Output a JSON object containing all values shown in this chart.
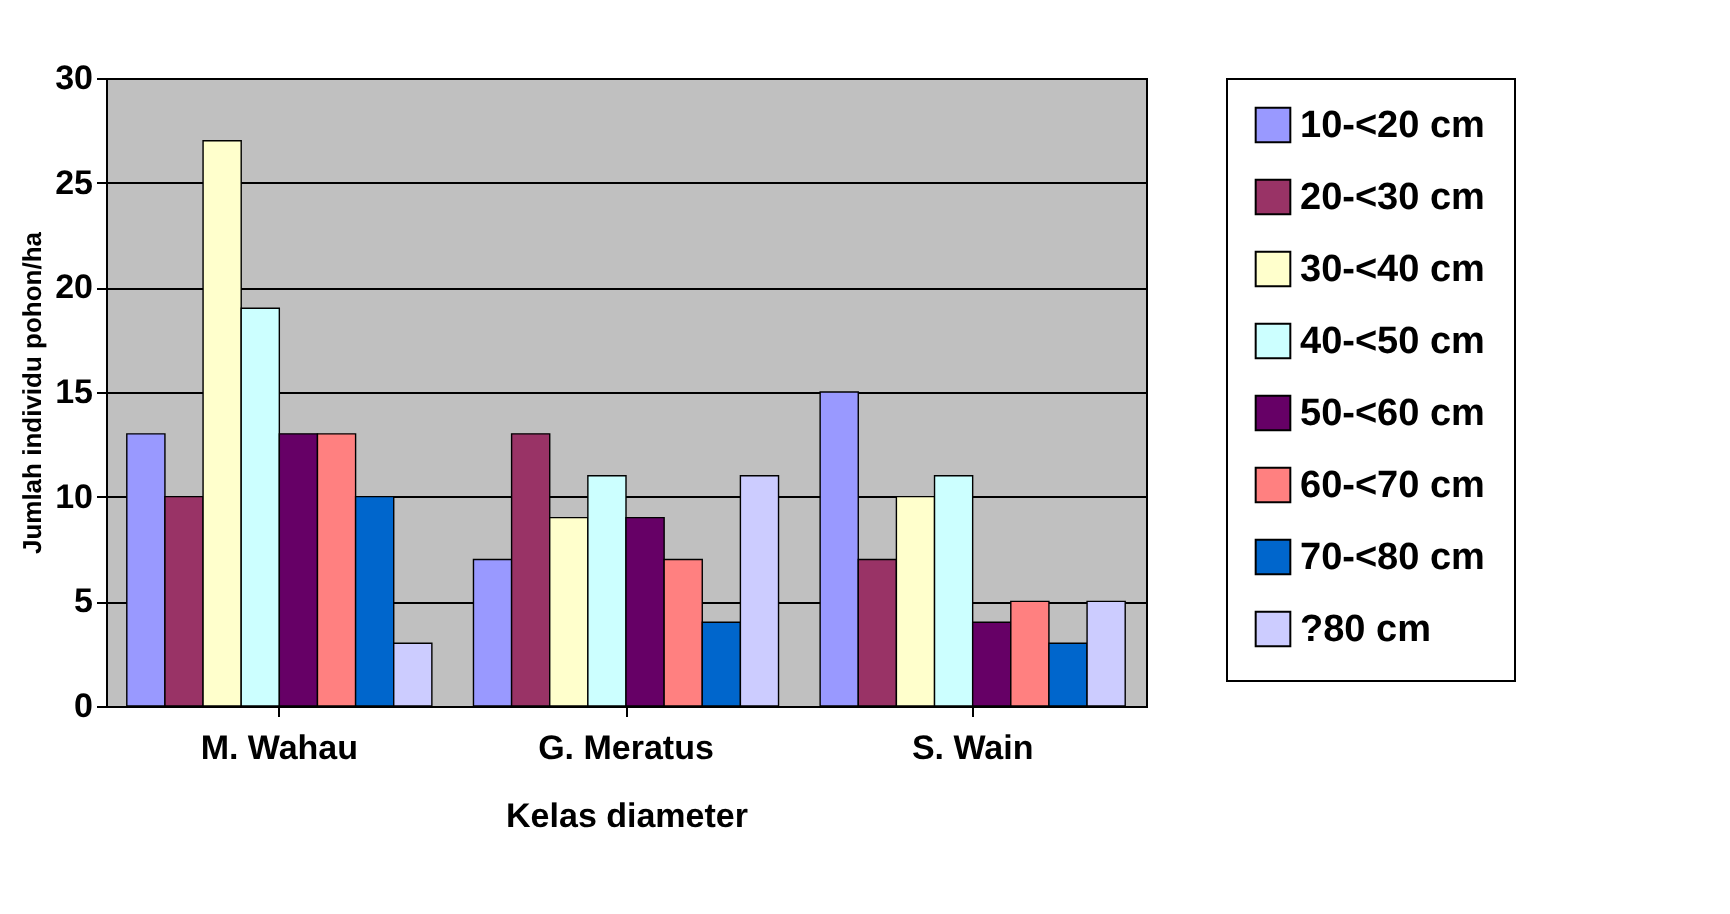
{
  "chart_data": {
    "type": "bar",
    "xlabel": "Kelas diameter",
    "ylabel": "Jumlah individu pohon/ha",
    "categories": [
      "M. Wahau",
      "G. Meratus",
      "S. Wain"
    ],
    "series": [
      {
        "name": "10-<20 cm",
        "color": "#9999ff",
        "values": [
          13,
          7,
          15
        ]
      },
      {
        "name": "20-<30 cm",
        "color": "#993366",
        "values": [
          10,
          13,
          7
        ]
      },
      {
        "name": "30-<40 cm",
        "color": "#ffffcc",
        "values": [
          27,
          9,
          10
        ]
      },
      {
        "name": "40-<50 cm",
        "color": "#ccffff",
        "values": [
          19,
          11,
          11
        ]
      },
      {
        "name": "50-<60 cm",
        "color": "#660066",
        "values": [
          13,
          9,
          4
        ]
      },
      {
        "name": "60-<70 cm",
        "color": "#ff8080",
        "values": [
          13,
          7,
          5
        ]
      },
      {
        "name": "70-<80 cm",
        "color": "#0066cc",
        "values": [
          10,
          4,
          3
        ]
      },
      {
        "name": "?80 cm",
        "color": "#ccccff",
        "values": [
          3,
          11,
          5
        ]
      }
    ],
    "ylim": [
      0,
      30
    ],
    "yticks": [
      0,
      5,
      10,
      15,
      20,
      25,
      30
    ],
    "grid": "y",
    "legend": "right"
  }
}
